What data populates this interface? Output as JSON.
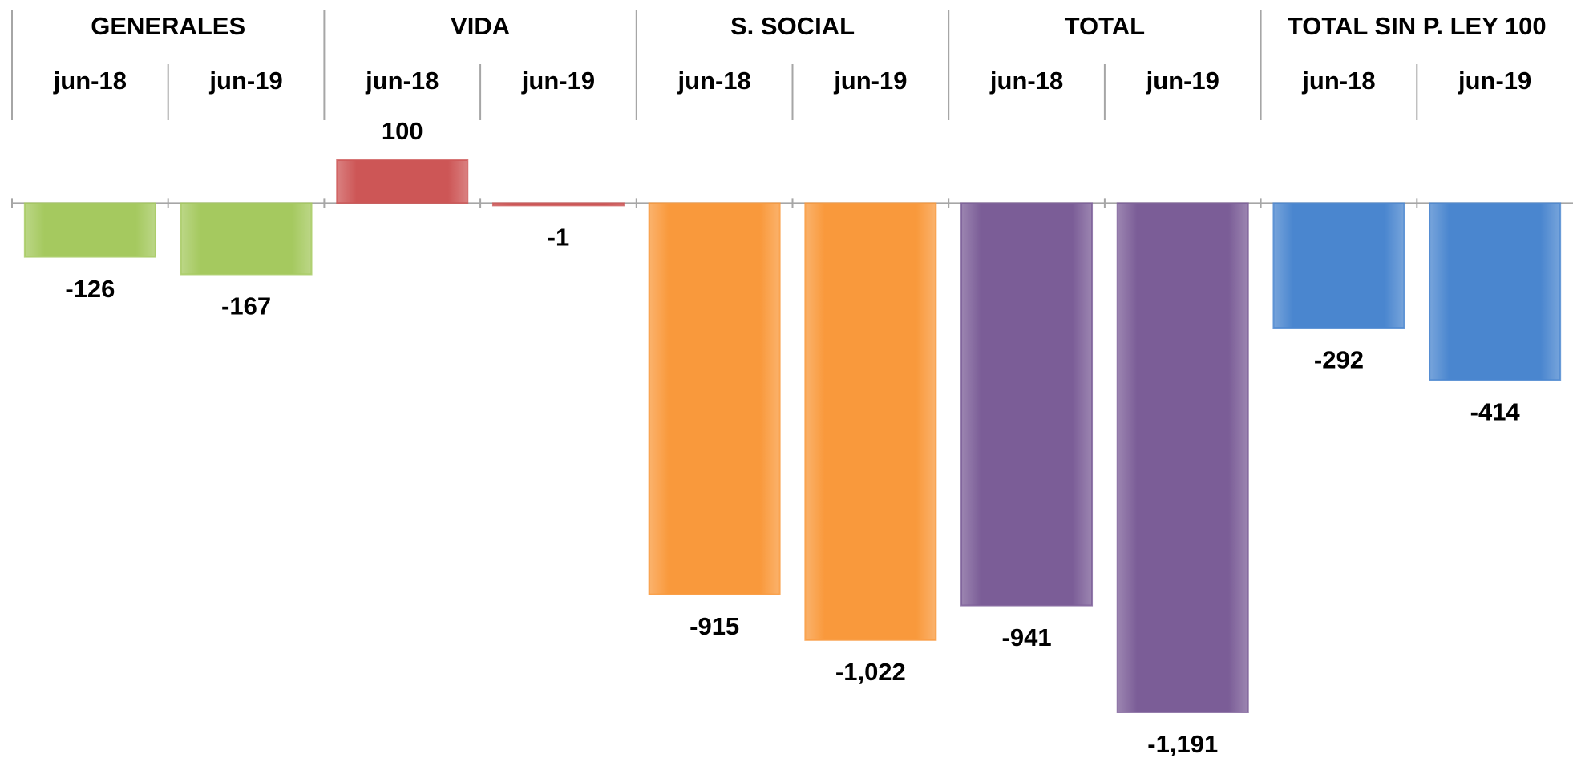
{
  "chart_data": {
    "type": "bar",
    "groups": [
      "GENERALES",
      "VIDA",
      "S. SOCIAL",
      "TOTAL",
      "TOTAL SIN P. LEY 100"
    ],
    "colors": [
      "#a5c95f",
      "#cd5656",
      "#f9993c",
      "#7b5d97",
      "#4a86cf"
    ],
    "categories": [
      "jun-18",
      "jun-19",
      "jun-18",
      "jun-19",
      "jun-18",
      "jun-19",
      "jun-18",
      "jun-19",
      "jun-18",
      "jun-19"
    ],
    "values": [
      -126,
      -167,
      100,
      -1,
      -915,
      -1022,
      -941,
      -1191,
      -292,
      -414
    ],
    "value_labels": [
      "-126",
      "-167",
      "100",
      "-1",
      "-915",
      "-1,022",
      "-941",
      "-1,191",
      "-292",
      "-414"
    ]
  }
}
